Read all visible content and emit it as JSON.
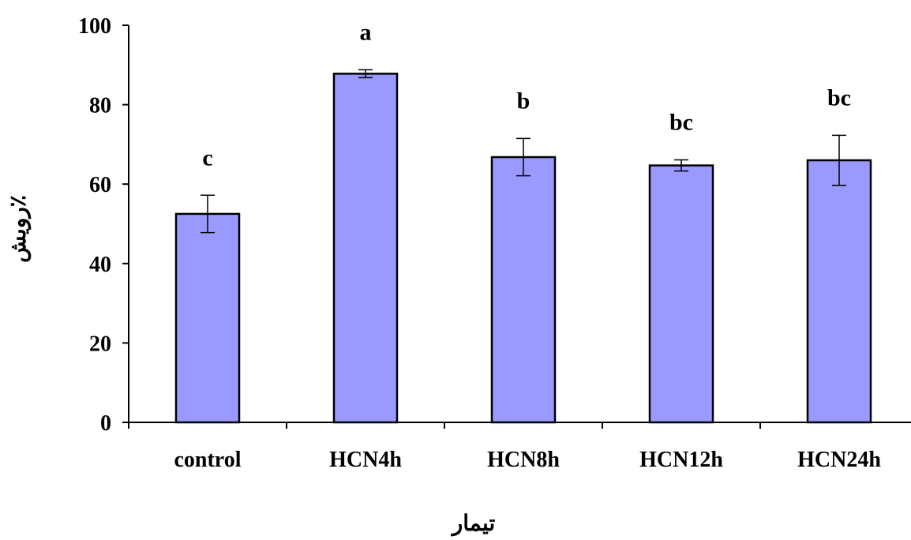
{
  "chart_data": {
    "type": "bar",
    "title": "",
    "xlabel": "تیمار",
    "ylabel": "٪رویش",
    "ylim": [
      0,
      100
    ],
    "yticks": [
      "0",
      "20",
      "40",
      "60",
      "80",
      "100"
    ],
    "categories": [
      "control",
      "HCN4h",
      "HCN8h",
      "HCN12h",
      "HCN24h"
    ],
    "values": [
      52.5,
      87.8,
      66.8,
      64.7,
      66.0
    ],
    "errors": [
      4.7,
      1.0,
      4.7,
      1.4,
      6.3
    ],
    "significance_labels": [
      "c",
      "a",
      "b",
      "bc",
      "bc"
    ],
    "bar_color": "#9999ff",
    "bar_edge_color": "#000000",
    "grid": false,
    "legend": "none"
  }
}
